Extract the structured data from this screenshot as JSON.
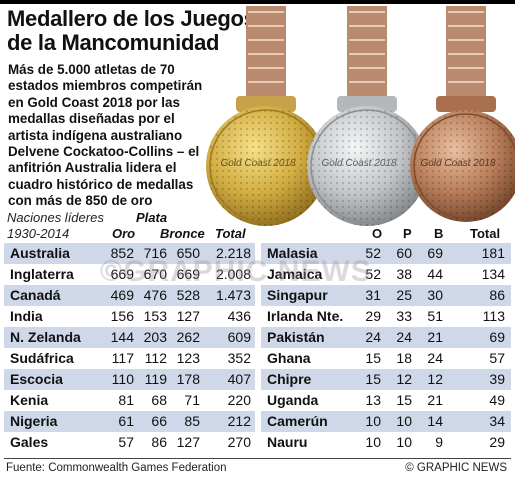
{
  "title": "Medallero de los Juegos de la Mancomunidad",
  "intro": "Más de 5.000 atletas de 70 estados miembros competirán en Gold Coast 2018 por las medallas diseñadas por el artista indígena australiano Delvene Cockatoo-Collins – el anfitrión Australia lidera el cuadro histórico de medallas con más de 850 de oro",
  "medal_text": "Gold Coast 2018",
  "watermark": "©GRAPHIC NEWS",
  "left_table": {
    "label": "Naciones líderes",
    "years": "1930-2014",
    "headers": {
      "oro": "Oro",
      "plata": "Plata",
      "bronce": "Bronce",
      "total": "Total"
    },
    "rows": [
      {
        "name": "Australia",
        "g": "852",
        "s": "716",
        "b": "650",
        "t": "2.218"
      },
      {
        "name": "Inglaterra",
        "g": "669",
        "s": "670",
        "b": "669",
        "t": "2.008"
      },
      {
        "name": "Canadá",
        "g": "469",
        "s": "476",
        "b": "528",
        "t": "1.473"
      },
      {
        "name": "India",
        "g": "156",
        "s": "153",
        "b": "127",
        "t": "436"
      },
      {
        "name": "N. Zelanda",
        "g": "144",
        "s": "203",
        "b": "262",
        "t": "609"
      },
      {
        "name": "Sudáfrica",
        "g": "117",
        "s": "112",
        "b": "123",
        "t": "352"
      },
      {
        "name": "Escocia",
        "g": "110",
        "s": "119",
        "b": "178",
        "t": "407"
      },
      {
        "name": "Kenia",
        "g": "81",
        "s": "68",
        "b": "71",
        "t": "220"
      },
      {
        "name": "Nigeria",
        "g": "61",
        "s": "66",
        "b": "85",
        "t": "212"
      },
      {
        "name": "Gales",
        "g": "57",
        "s": "86",
        "b": "127",
        "t": "270"
      }
    ]
  },
  "right_table": {
    "headers": {
      "o": "O",
      "p": "P",
      "b": "B",
      "total": "Total"
    },
    "rows": [
      {
        "name": "Malasia",
        "g": "52",
        "s": "60",
        "b": "69",
        "t": "181"
      },
      {
        "name": "Jamaica",
        "g": "52",
        "s": "38",
        "b": "44",
        "t": "134"
      },
      {
        "name": "Singapur",
        "g": "31",
        "s": "25",
        "b": "30",
        "t": "86"
      },
      {
        "name": "Irlanda Nte.",
        "g": "29",
        "s": "33",
        "b": "51",
        "t": "113"
      },
      {
        "name": "Pakistán",
        "g": "24",
        "s": "24",
        "b": "21",
        "t": "69"
      },
      {
        "name": "Ghana",
        "g": "15",
        "s": "18",
        "b": "24",
        "t": "57"
      },
      {
        "name": "Chipre",
        "g": "15",
        "s": "12",
        "b": "12",
        "t": "39"
      },
      {
        "name": "Uganda",
        "g": "13",
        "s": "15",
        "b": "21",
        "t": "49"
      },
      {
        "name": "Camerún",
        "g": "10",
        "s": "10",
        "b": "14",
        "t": "34"
      },
      {
        "name": "Nauru",
        "g": "10",
        "s": "10",
        "b": "9",
        "t": "29"
      }
    ]
  },
  "footer": {
    "source": "Fuente: Commonwealth Games Federation",
    "credit": "© GRAPHIC NEWS"
  },
  "colors": {
    "row_shade": "#cfd8e8",
    "gold": "#c9a53a",
    "silver": "#bfc2c4",
    "bronze": "#b67c5c",
    "ribbon": "#b98a6e"
  }
}
